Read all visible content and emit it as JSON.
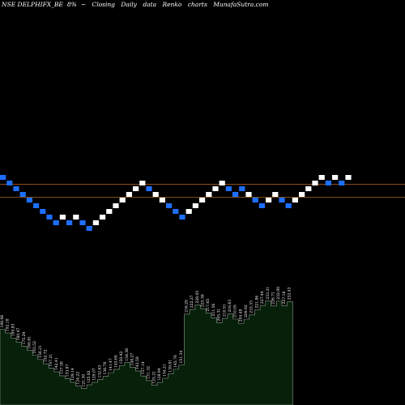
{
  "header": {
    "symbol": "NSE DELPHIFX_BE",
    "box_size": "8%",
    "arrow": "~",
    "mode": "Closing",
    "period": "Daily",
    "data": "data",
    "title": "Renko",
    "charts_word": "charts",
    "site": "MunafaSutra.com"
  },
  "colors": {
    "background": "#000000",
    "up_brick": "#ffffff",
    "down_brick": "#1e6fff",
    "line_upper": "#c26420",
    "line_lower": "#a8681e",
    "volume_fill": "#06200a",
    "volume_stroke": "#8ea08e"
  },
  "chart_data": [
    {
      "type": "renko",
      "bricks": [
        {
          "level": 23,
          "dir": "down"
        },
        {
          "level": 22,
          "dir": "down"
        },
        {
          "level": 21,
          "dir": "down"
        },
        {
          "level": 20,
          "dir": "down"
        },
        {
          "level": 19,
          "dir": "down"
        },
        {
          "level": 18,
          "dir": "down"
        },
        {
          "level": 17,
          "dir": "down"
        },
        {
          "level": 16,
          "dir": "down"
        },
        {
          "level": 15,
          "dir": "down"
        },
        {
          "level": 16,
          "dir": "up"
        },
        {
          "level": 15,
          "dir": "down"
        },
        {
          "level": 16,
          "dir": "up"
        },
        {
          "level": 15,
          "dir": "down"
        },
        {
          "level": 14,
          "dir": "down"
        },
        {
          "level": 15,
          "dir": "up"
        },
        {
          "level": 16,
          "dir": "up"
        },
        {
          "level": 17,
          "dir": "up"
        },
        {
          "level": 18,
          "dir": "up"
        },
        {
          "level": 19,
          "dir": "up"
        },
        {
          "level": 20,
          "dir": "up"
        },
        {
          "level": 21,
          "dir": "up"
        },
        {
          "level": 22,
          "dir": "up"
        },
        {
          "level": 21,
          "dir": "down"
        },
        {
          "level": 20,
          "dir": "up"
        },
        {
          "level": 19,
          "dir": "up"
        },
        {
          "level": 18,
          "dir": "down"
        },
        {
          "level": 17,
          "dir": "down"
        },
        {
          "level": 16,
          "dir": "down"
        },
        {
          "level": 17,
          "dir": "up"
        },
        {
          "level": 18,
          "dir": "up"
        },
        {
          "level": 19,
          "dir": "up"
        },
        {
          "level": 20,
          "dir": "up"
        },
        {
          "level": 21,
          "dir": "up"
        },
        {
          "level": 22,
          "dir": "up"
        },
        {
          "level": 21,
          "dir": "down"
        },
        {
          "level": 20,
          "dir": "down"
        },
        {
          "level": 21,
          "dir": "down"
        },
        {
          "level": 20,
          "dir": "up"
        },
        {
          "level": 19,
          "dir": "down"
        },
        {
          "level": 18,
          "dir": "down"
        },
        {
          "level": 19,
          "dir": "up"
        },
        {
          "level": 20,
          "dir": "up"
        },
        {
          "level": 19,
          "dir": "down"
        },
        {
          "level": 18,
          "dir": "down"
        },
        {
          "level": 19,
          "dir": "up"
        },
        {
          "level": 20,
          "dir": "up"
        },
        {
          "level": 21,
          "dir": "up"
        },
        {
          "level": 22,
          "dir": "up"
        },
        {
          "level": 23,
          "dir": "up"
        },
        {
          "level": 22,
          "dir": "down"
        },
        {
          "level": 23,
          "dir": "up"
        },
        {
          "level": 22,
          "dir": "down"
        },
        {
          "level": 23,
          "dir": "up"
        }
      ],
      "reference_levels": [
        22,
        20
      ]
    },
    {
      "type": "area",
      "series": [
        {
          "values": [
            196.96,
            192.18,
            185.83,
            180.47,
            175.29,
            169.81,
            163.52,
            158.21,
            152.72,
            147.21,
            142.41,
            137.38,
            133.87,
            129.14,
            124.22,
            121.3,
            125.82,
            129.07,
            132.63,
            136.78,
            141.47,
            145.65,
            150.42,
            154.36,
            148.27,
            143.59,
            137.14,
            131.32,
            125.21,
            128.94,
            134.21,
            139.81,
            145.76,
            151.34,
            216.29,
            222.27,
            228.05,
            223.38,
            217.65,
            211.56,
            205.31,
            210.91,
            216.63,
            210.05,
            204.48,
            209.92,
            215.33,
            221.86,
            227.44,
            233.21,
            226.71,
            232.99,
            227.18,
            232.43
          ],
          "labels": [
            "196.96",
            "192.18",
            "185.83",
            "180.47",
            "175.29",
            "169.81",
            "163.52",
            "158.21",
            "152.72",
            "147.21",
            "142.41",
            "137.38",
            "133.87",
            "129.14",
            "124.22",
            "121.30",
            "125.82",
            "129.07",
            "132.63",
            "136.78",
            "141.47",
            "145.65",
            "150.42",
            "154.36",
            "148.27",
            "143.59",
            "137.14",
            "131.32",
            "125.21",
            "128.94",
            "134.21",
            "139.81",
            "145.76",
            "151.34",
            "216.29",
            "222.27",
            "228.05",
            "223.38",
            "217.65",
            "211.56",
            "205.31",
            "210.91",
            "216.63",
            "210.05",
            "204.48",
            "209.92",
            "215.33",
            "221.86",
            "227.44",
            "233.21",
            "226.71",
            "232.99",
            "227.18",
            "232.43"
          ]
        }
      ],
      "ylim": [
        100,
        240
      ]
    }
  ]
}
